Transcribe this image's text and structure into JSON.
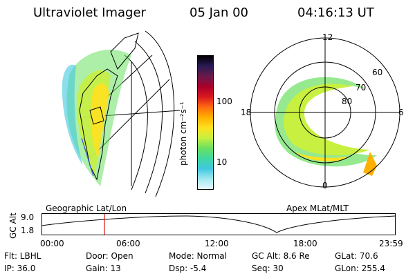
{
  "header": {
    "instrument": "Ultraviolet Imager",
    "date": "05 Jan 00",
    "time": "04:16:13 UT"
  },
  "left_panel": {
    "caption": "Geographic Lat/Lon"
  },
  "right_panel": {
    "caption": "Apex MLat/MLT",
    "mlt_labels": {
      "top": "12",
      "left": "18",
      "right": "6",
      "bottom": "0"
    },
    "lat_labels": [
      "60",
      "70",
      "80"
    ]
  },
  "colorbar": {
    "unit_label": "photon cm⁻²s⁻¹",
    "tick_labels": [
      "100",
      "10"
    ],
    "scale": "log",
    "colors": [
      "#000000",
      "#2a1a55",
      "#6a1a4a",
      "#a8002a",
      "#d81820",
      "#ff6a10",
      "#ffb000",
      "#ffe020",
      "#c8f040",
      "#6ae060",
      "#40d8a0",
      "#40c8e0",
      "#a0e8f0",
      "#e8f8ff"
    ]
  },
  "altitude_plot": {
    "y_label": "GC Alt",
    "y_ticks": [
      "9.0",
      "1.8"
    ],
    "x_ticks": [
      "00:00",
      "06:00",
      "12:00",
      "18:00",
      "23:59"
    ],
    "current_time_hours": 4.27,
    "marker_color": "#d81818"
  },
  "info_rows": [
    [
      "Flt: LBHL",
      "Door: Open",
      "Mode: Normal",
      "GC Alt: 8.6 Re",
      "GLat:  70.6"
    ],
    [
      "IP: 36.0",
      "Gain: 13",
      "Dsp:    -5.4",
      "Seq: 30",
      "GLon: 255.4"
    ]
  ]
}
